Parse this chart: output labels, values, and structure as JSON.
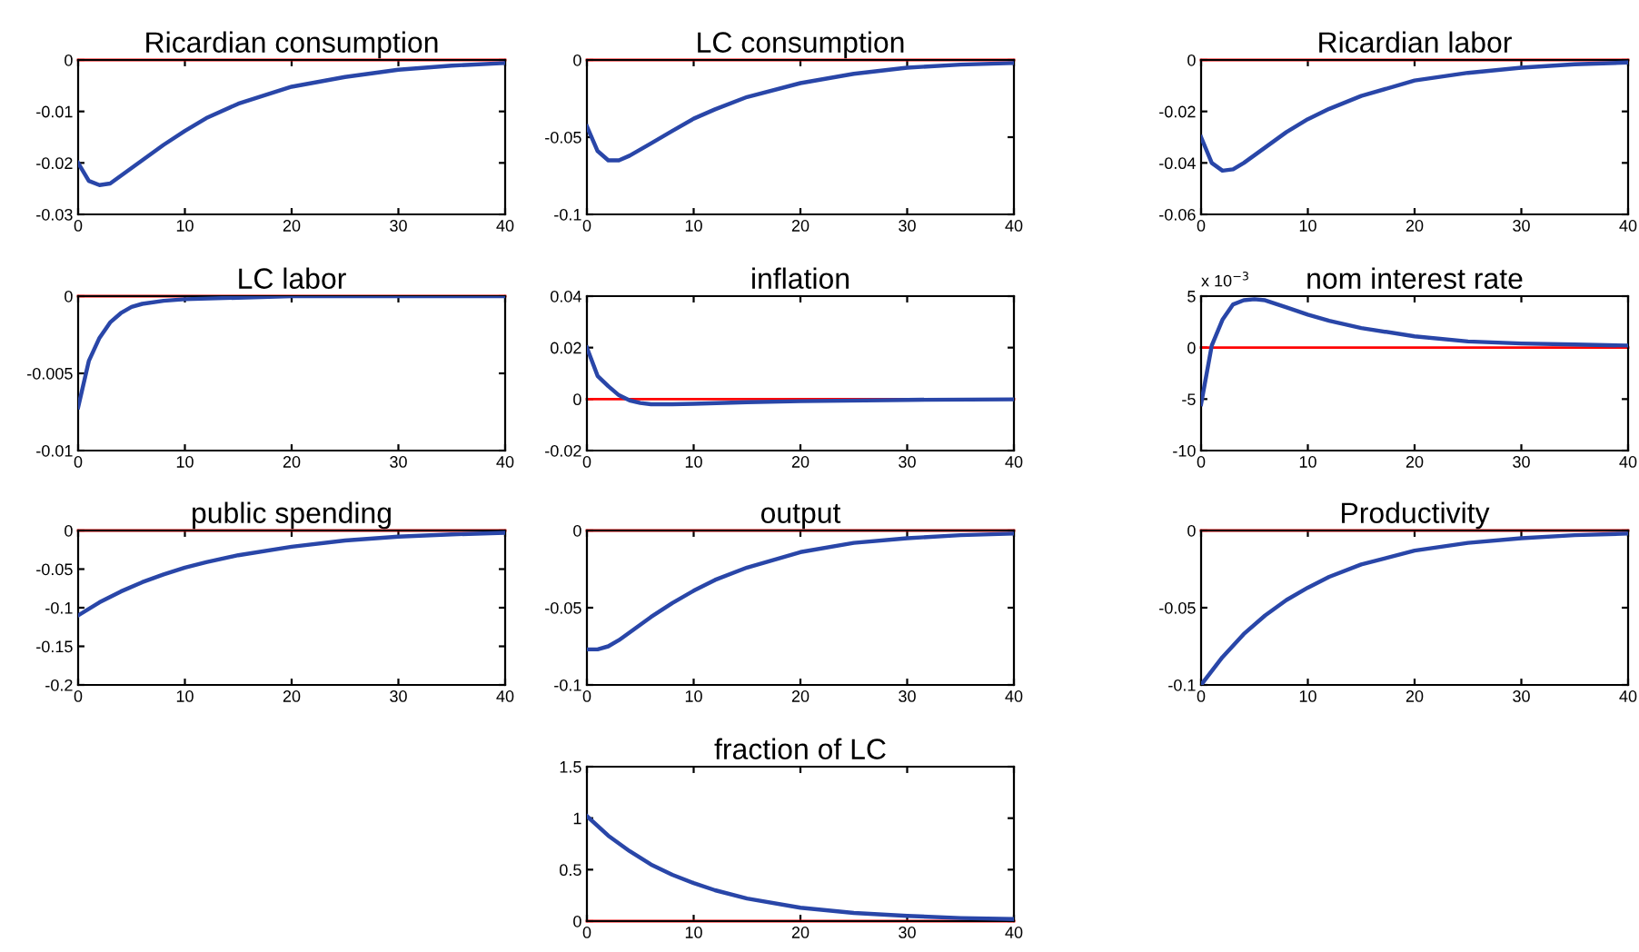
{
  "chart_data": [
    {
      "type": "line",
      "title": "Ricardian consumption",
      "x": [
        0,
        1,
        2,
        3,
        4,
        5,
        6,
        8,
        10,
        12,
        15,
        20,
        25,
        30,
        35,
        40
      ],
      "series": [
        {
          "color": "#2946a8",
          "values": [
            -0.02,
            -0.0235,
            -0.0243,
            -0.024,
            -0.0225,
            -0.021,
            -0.0195,
            -0.0165,
            -0.0138,
            -0.0113,
            -0.0085,
            -0.0052,
            -0.0033,
            -0.0019,
            -0.0011,
            -0.0006
          ]
        }
      ],
      "xlim": [
        0,
        40
      ],
      "xticks": [
        0,
        10,
        20,
        30,
        40
      ],
      "ylim": [
        -0.03,
        0
      ],
      "yticks": [
        -0.03,
        -0.02,
        -0.01,
        0
      ],
      "ref_lines": [
        {
          "axis": "y",
          "value": 0,
          "color": "#ff0000"
        }
      ]
    },
    {
      "type": "line",
      "title": "LC consumption",
      "x": [
        0,
        1,
        2,
        3,
        4,
        5,
        6,
        8,
        10,
        12,
        15,
        20,
        25,
        30,
        35,
        40
      ],
      "series": [
        {
          "color": "#2946a8",
          "values": [
            -0.043,
            -0.059,
            -0.065,
            -0.065,
            -0.062,
            -0.058,
            -0.054,
            -0.046,
            -0.038,
            -0.032,
            -0.024,
            -0.015,
            -0.009,
            -0.005,
            -0.003,
            -0.002
          ]
        }
      ],
      "xlim": [
        0,
        40
      ],
      "xticks": [
        0,
        10,
        20,
        30,
        40
      ],
      "ylim": [
        -0.1,
        0
      ],
      "yticks": [
        -0.1,
        -0.05,
        0
      ],
      "ref_lines": [
        {
          "axis": "y",
          "value": 0,
          "color": "#ff0000"
        }
      ]
    },
    {
      "type": "line",
      "title": "Ricardian labor",
      "x": [
        0,
        1,
        2,
        3,
        4,
        5,
        6,
        8,
        10,
        12,
        15,
        20,
        25,
        30,
        35,
        40
      ],
      "series": [
        {
          "color": "#2946a8",
          "values": [
            -0.03,
            -0.04,
            -0.043,
            -0.0425,
            -0.04,
            -0.037,
            -0.034,
            -0.028,
            -0.023,
            -0.019,
            -0.014,
            -0.008,
            -0.005,
            -0.003,
            -0.0017,
            -0.001
          ]
        }
      ],
      "xlim": [
        0,
        40
      ],
      "xticks": [
        0,
        10,
        20,
        30,
        40
      ],
      "ylim": [
        -0.06,
        0
      ],
      "yticks": [
        -0.06,
        -0.04,
        -0.02,
        0
      ],
      "ref_lines": [
        {
          "axis": "y",
          "value": 0,
          "color": "#ff0000"
        }
      ]
    },
    {
      "type": "line",
      "title": "LC labor",
      "x": [
        0,
        1,
        2,
        3,
        4,
        5,
        6,
        8,
        10,
        15,
        20,
        40
      ],
      "series": [
        {
          "color": "#2946a8",
          "values": [
            -0.0072,
            -0.0042,
            -0.0027,
            -0.0017,
            -0.0011,
            -0.0007,
            -0.0005,
            -0.0003,
            -0.0002,
            -0.0001,
            0,
            0
          ]
        }
      ],
      "xlim": [
        0,
        40
      ],
      "xticks": [
        0,
        10,
        20,
        30,
        40
      ],
      "ylim": [
        -0.01,
        0
      ],
      "yticks": [
        -0.01,
        -0.005,
        0
      ],
      "ref_lines": [
        {
          "axis": "y",
          "value": 0,
          "color": "#ff0000"
        }
      ]
    },
    {
      "type": "line",
      "title": "inflation",
      "x": [
        0,
        1,
        2,
        3,
        4,
        5,
        6,
        8,
        10,
        15,
        20,
        30,
        40
      ],
      "series": [
        {
          "color": "#2946a8",
          "values": [
            0.02,
            0.009,
            0.005,
            0.0015,
            -0.0005,
            -0.0015,
            -0.002,
            -0.002,
            -0.0018,
            -0.0012,
            -0.0008,
            -0.0003,
            -0.0001
          ]
        }
      ],
      "xlim": [
        0,
        40
      ],
      "xticks": [
        0,
        10,
        20,
        30,
        40
      ],
      "ylim": [
        -0.02,
        0.04
      ],
      "yticks": [
        -0.02,
        0,
        0.02,
        0.04
      ],
      "ref_lines": [
        {
          "axis": "y",
          "value": 0,
          "color": "#ff0000"
        }
      ]
    },
    {
      "type": "line",
      "title": "nom interest rate",
      "annotations": [
        "x 10$^{−3}$"
      ],
      "x": [
        0,
        1,
        2,
        3,
        4,
        5,
        6,
        8,
        10,
        12,
        15,
        20,
        25,
        30,
        35,
        40
      ],
      "series": [
        {
          "color": "#2946a8",
          "values": [
            -5.5,
            0.2,
            2.7,
            4.2,
            4.6,
            4.7,
            4.6,
            3.9,
            3.2,
            2.6,
            1.9,
            1.1,
            0.6,
            0.4,
            0.3,
            0.2
          ]
        }
      ],
      "xlim": [
        0,
        40
      ],
      "xticks": [
        0,
        10,
        20,
        30,
        40
      ],
      "ylim": [
        -10,
        5
      ],
      "yticks": [
        -10,
        -5,
        0,
        5
      ],
      "ref_lines": [
        {
          "axis": "y",
          "value": 0,
          "color": "#ff0000"
        }
      ]
    },
    {
      "type": "line",
      "title": "public spending",
      "x": [
        0,
        2,
        4,
        6,
        8,
        10,
        12,
        15,
        20,
        25,
        30,
        35,
        40
      ],
      "series": [
        {
          "color": "#2946a8",
          "values": [
            -0.11,
            -0.093,
            -0.079,
            -0.067,
            -0.057,
            -0.048,
            -0.041,
            -0.032,
            -0.021,
            -0.013,
            -0.008,
            -0.005,
            -0.003
          ]
        }
      ],
      "xlim": [
        0,
        40
      ],
      "xticks": [
        0,
        10,
        20,
        30,
        40
      ],
      "ylim": [
        -0.2,
        0
      ],
      "yticks": [
        -0.2,
        -0.15,
        -0.1,
        -0.05,
        0
      ],
      "ref_lines": [
        {
          "axis": "y",
          "value": 0,
          "color": "#ff0000"
        }
      ]
    },
    {
      "type": "line",
      "title": "output",
      "x": [
        0,
        1,
        2,
        3,
        4,
        5,
        6,
        8,
        10,
        12,
        15,
        20,
        25,
        30,
        35,
        40
      ],
      "series": [
        {
          "color": "#2946a8",
          "values": [
            -0.077,
            -0.077,
            -0.075,
            -0.071,
            -0.066,
            -0.061,
            -0.056,
            -0.047,
            -0.039,
            -0.032,
            -0.024,
            -0.014,
            -0.008,
            -0.005,
            -0.003,
            -0.002
          ]
        }
      ],
      "xlim": [
        0,
        40
      ],
      "xticks": [
        0,
        10,
        20,
        30,
        40
      ],
      "ylim": [
        -0.1,
        0
      ],
      "yticks": [
        -0.1,
        -0.05,
        0
      ],
      "ref_lines": [
        {
          "axis": "y",
          "value": 0,
          "color": "#ff0000"
        }
      ]
    },
    {
      "type": "line",
      "title": "Productivity",
      "x": [
        0,
        2,
        4,
        6,
        8,
        10,
        12,
        15,
        20,
        25,
        30,
        35,
        40
      ],
      "series": [
        {
          "color": "#2946a8",
          "values": [
            -0.1,
            -0.082,
            -0.067,
            -0.055,
            -0.045,
            -0.037,
            -0.03,
            -0.022,
            -0.013,
            -0.008,
            -0.005,
            -0.003,
            -0.002
          ]
        }
      ],
      "xlim": [
        0,
        40
      ],
      "xticks": [
        0,
        10,
        20,
        30,
        40
      ],
      "ylim": [
        -0.1,
        0
      ],
      "yticks": [
        -0.1,
        -0.05,
        0
      ],
      "ref_lines": [
        {
          "axis": "y",
          "value": 0,
          "color": "#ff0000"
        }
      ]
    },
    {
      "type": "line",
      "title": "fraction of LC",
      "x": [
        0,
        2,
        4,
        6,
        8,
        10,
        12,
        15,
        20,
        25,
        30,
        35,
        40
      ],
      "series": [
        {
          "color": "#2946a8",
          "values": [
            1.02,
            0.83,
            0.68,
            0.55,
            0.45,
            0.37,
            0.3,
            0.22,
            0.13,
            0.08,
            0.05,
            0.03,
            0.02
          ]
        }
      ],
      "xlim": [
        0,
        40
      ],
      "xticks": [
        0,
        10,
        20,
        30,
        40
      ],
      "ylim": [
        0,
        1.5
      ],
      "yticks": [
        0,
        0.5,
        1,
        1.5
      ],
      "ref_lines": [
        {
          "axis": "y",
          "value": 0,
          "color": "#ff0000"
        }
      ]
    }
  ]
}
